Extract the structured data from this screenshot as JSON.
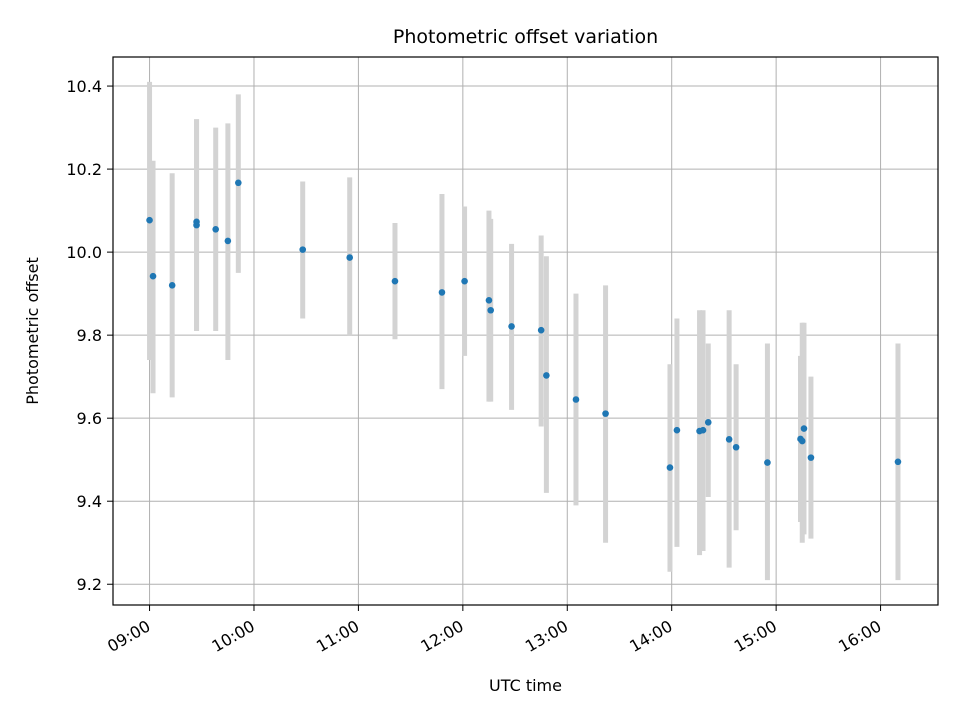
{
  "chart_data": {
    "type": "scatter",
    "title": "Photometric offset variation",
    "xlabel": "UTC time",
    "ylabel": "Photometric offset",
    "x_unit": "time of day (HH:MM, UTC)",
    "xlim": [
      "08:39",
      "16:33"
    ],
    "ylim": [
      9.15,
      10.47
    ],
    "x_ticks": [
      "09:00",
      "10:00",
      "11:00",
      "12:00",
      "13:00",
      "14:00",
      "15:00",
      "16:00"
    ],
    "y_ticks": [
      9.2,
      9.4,
      9.6,
      9.8,
      10.0,
      10.2,
      10.4
    ],
    "grid": true,
    "legend": "none",
    "colors": {
      "point": "#1f77b4",
      "errorbar": "#d3d3d3",
      "grid": "#b0b0b0"
    },
    "series": [
      {
        "points": [
          {
            "t": "09:00",
            "y": 10.077,
            "lo": 9.74,
            "hi": 10.41
          },
          {
            "t": "09:02",
            "y": 9.942,
            "lo": 9.66,
            "hi": 10.22
          },
          {
            "t": "09:13",
            "y": 9.92,
            "lo": 9.65,
            "hi": 10.19
          },
          {
            "t": "09:27",
            "y": 10.073,
            "lo": 9.81,
            "hi": 10.32
          },
          {
            "t": "09:27",
            "y": 10.065,
            "lo": 9.81,
            "hi": 10.32
          },
          {
            "t": "09:38",
            "y": 10.055,
            "lo": 9.81,
            "hi": 10.3
          },
          {
            "t": "09:45",
            "y": 10.027,
            "lo": 9.74,
            "hi": 10.31
          },
          {
            "t": "09:51",
            "y": 10.167,
            "lo": 9.95,
            "hi": 10.38
          },
          {
            "t": "10:28",
            "y": 10.006,
            "lo": 9.84,
            "hi": 10.17
          },
          {
            "t": "10:55",
            "y": 9.987,
            "lo": 9.8,
            "hi": 10.18
          },
          {
            "t": "11:21",
            "y": 9.93,
            "lo": 9.79,
            "hi": 10.07
          },
          {
            "t": "11:48",
            "y": 9.903,
            "lo": 9.67,
            "hi": 10.14
          },
          {
            "t": "12:01",
            "y": 9.93,
            "lo": 9.75,
            "hi": 10.11
          },
          {
            "t": "12:15",
            "y": 9.884,
            "lo": 9.64,
            "hi": 10.1
          },
          {
            "t": "12:16",
            "y": 9.86,
            "lo": 9.64,
            "hi": 10.08
          },
          {
            "t": "12:28",
            "y": 9.821,
            "lo": 9.62,
            "hi": 10.02
          },
          {
            "t": "12:45",
            "y": 9.812,
            "lo": 9.58,
            "hi": 10.04
          },
          {
            "t": "12:48",
            "y": 9.703,
            "lo": 9.42,
            "hi": 9.99
          },
          {
            "t": "13:05",
            "y": 9.645,
            "lo": 9.39,
            "hi": 9.9
          },
          {
            "t": "13:22",
            "y": 9.611,
            "lo": 9.3,
            "hi": 9.92
          },
          {
            "t": "13:59",
            "y": 9.481,
            "lo": 9.23,
            "hi": 9.73
          },
          {
            "t": "14:03",
            "y": 9.571,
            "lo": 9.29,
            "hi": 9.84
          },
          {
            "t": "14:16",
            "y": 9.569,
            "lo": 9.27,
            "hi": 9.86
          },
          {
            "t": "14:18",
            "y": 9.571,
            "lo": 9.28,
            "hi": 9.86
          },
          {
            "t": "14:21",
            "y": 9.59,
            "lo": 9.41,
            "hi": 9.78
          },
          {
            "t": "14:33",
            "y": 9.549,
            "lo": 9.24,
            "hi": 9.86
          },
          {
            "t": "14:37",
            "y": 9.53,
            "lo": 9.33,
            "hi": 9.73
          },
          {
            "t": "14:55",
            "y": 9.493,
            "lo": 9.21,
            "hi": 9.78
          },
          {
            "t": "15:14",
            "y": 9.55,
            "lo": 9.35,
            "hi": 9.75
          },
          {
            "t": "15:15",
            "y": 9.545,
            "lo": 9.3,
            "hi": 9.83
          },
          {
            "t": "15:16",
            "y": 9.575,
            "lo": 9.32,
            "hi": 9.83
          },
          {
            "t": "15:20",
            "y": 9.505,
            "lo": 9.31,
            "hi": 9.7
          },
          {
            "t": "16:10",
            "y": 9.495,
            "lo": 9.21,
            "hi": 9.78
          }
        ]
      }
    ]
  }
}
